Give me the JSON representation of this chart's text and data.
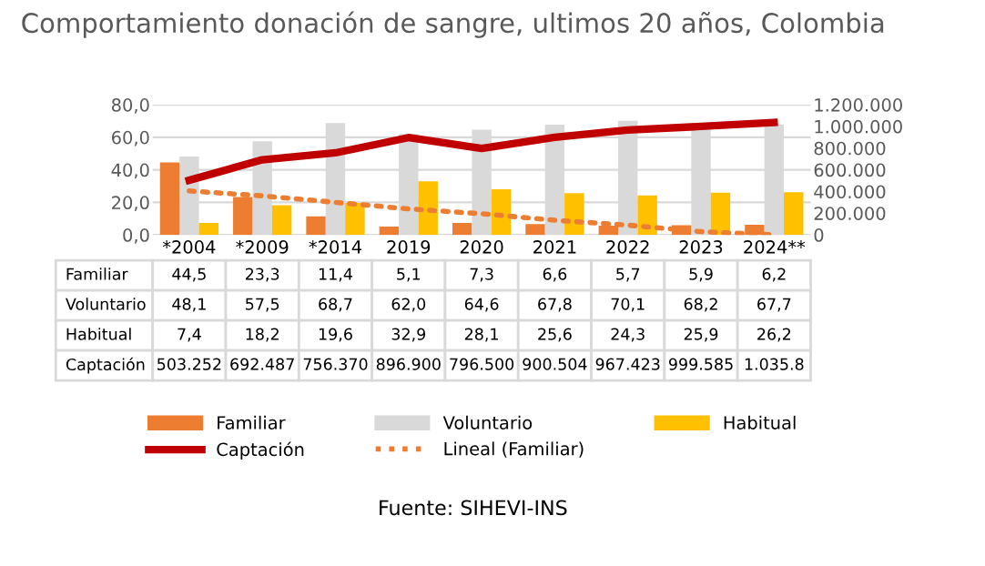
{
  "chart_data": {
    "type": "bar",
    "title": "Comportamiento donación de sangre, ultimos 20 años, Colombia",
    "categories": [
      "*2004",
      "*2009",
      "*2014",
      "2019",
      "2020",
      "2021",
      "2022",
      "2023",
      "2024**"
    ],
    "series": [
      {
        "name": "Familiar",
        "color": "#ed7d31",
        "values": [
          44.5,
          23.3,
          11.4,
          5.1,
          7.3,
          6.6,
          5.7,
          5.9,
          6.2
        ],
        "value_labels": [
          "44,5",
          "23,3",
          "11,4",
          "5,1",
          "7,3",
          "6,6",
          "5,7",
          "5,9",
          "6,2"
        ]
      },
      {
        "name": "Voluntario",
        "color": "#d9d9d9",
        "values": [
          48.1,
          57.5,
          68.7,
          62.0,
          64.6,
          67.8,
          70.1,
          68.2,
          67.7
        ],
        "value_labels": [
          "48,1",
          "57,5",
          "68,7",
          "62,0",
          "64,6",
          "67,8",
          "70,1",
          "68,2",
          "67,7"
        ]
      },
      {
        "name": "Habitual",
        "color": "#ffc000",
        "values": [
          7.4,
          18.2,
          19.6,
          32.9,
          28.1,
          25.6,
          24.3,
          25.9,
          26.2
        ],
        "value_labels": [
          "7,4",
          "18,2",
          "19,6",
          "32,9",
          "28,1",
          "25,6",
          "24,3",
          "25,9",
          "26,2"
        ]
      },
      {
        "name": "Captación",
        "type": "line",
        "axis": "y2",
        "color": "#c00000",
        "line_style": "solid",
        "values": [
          503252,
          692487,
          756370,
          896900,
          796500,
          900504,
          967423,
          999585,
          1035800
        ],
        "value_labels": [
          "503.252",
          "692.487",
          "756.370",
          "896.900",
          "796.500",
          "900.504",
          "967.423",
          "999.585",
          "1.035.8"
        ]
      },
      {
        "name": "Lineal (Familiar)",
        "type": "line",
        "color": "#ed7d31",
        "line_style": "dotted",
        "values": [
          27,
          24,
          20,
          16,
          13,
          9,
          6,
          2,
          0
        ]
      }
    ],
    "ylim": [
      0,
      80
    ],
    "yticks": [
      {
        "value": 0,
        "label": "0,0"
      },
      {
        "value": 20,
        "label": "20,0"
      },
      {
        "value": 40,
        "label": "40,0"
      },
      {
        "value": 60,
        "label": "60,0"
      },
      {
        "value": 80,
        "label": "80,0"
      }
    ],
    "y2lim": [
      0,
      1200000
    ],
    "y2ticks": [
      0,
      {
        "value": 200000,
        "label": "200.000"
      },
      {
        "value": 400000,
        "label": "400.000"
      },
      {
        "value": 600000,
        "label": "600.000"
      },
      {
        "value": 800000,
        "label": "800.000"
      },
      {
        "value": 1000000,
        "label": "1.000.000"
      },
      {
        "value": 1200000,
        "label": "1.200.000"
      }
    ],
    "grid": "y",
    "legend": "bottom",
    "annotations": [
      "Fuente: SIHEVI-INS"
    ]
  }
}
